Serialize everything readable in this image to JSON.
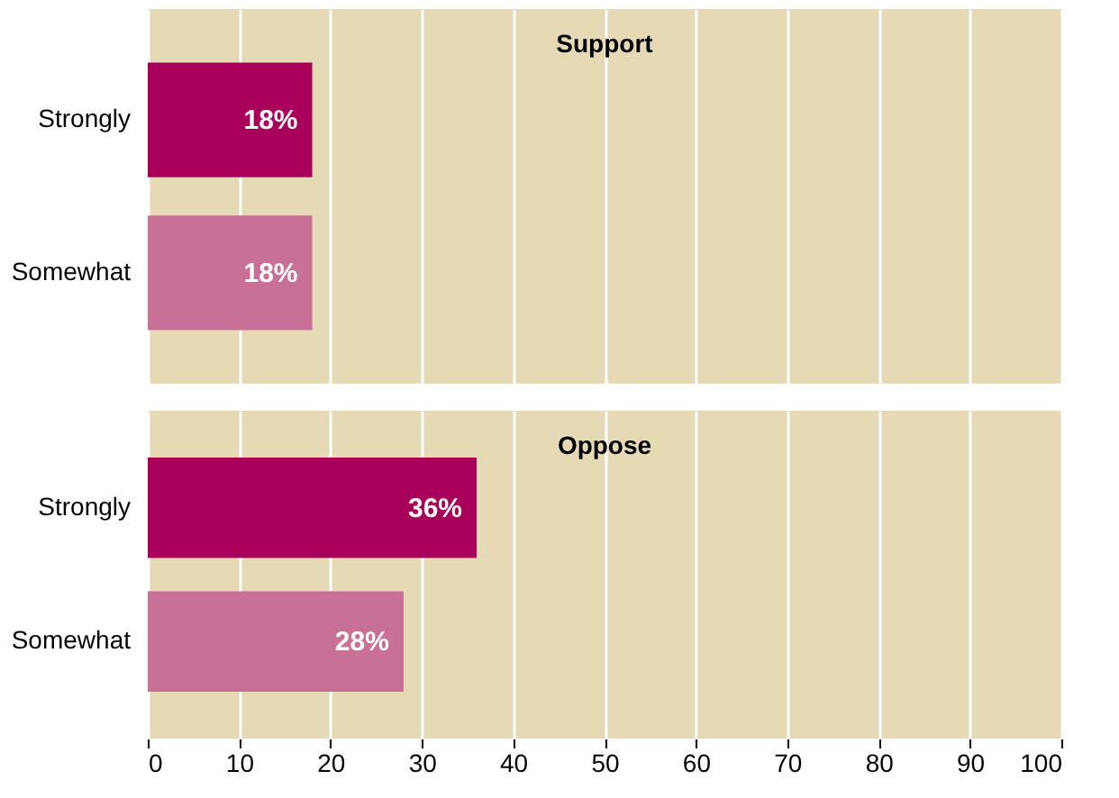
{
  "chart_data": [
    {
      "type": "bar",
      "orientation": "horizontal",
      "title": "Support",
      "categories": [
        "Strongly",
        "Somewhat"
      ],
      "values": [
        18,
        18
      ],
      "colors": [
        "#a8005a",
        "#c87095"
      ],
      "value_labels": [
        "18%",
        "18%"
      ],
      "xlim": [
        0,
        100
      ],
      "xticks": [
        0,
        10,
        20,
        30,
        40,
        50,
        60,
        70,
        80,
        90,
        100
      ],
      "grid": "x",
      "tick_labels": "y"
    },
    {
      "type": "bar",
      "orientation": "horizontal",
      "title": "Oppose",
      "categories": [
        "Strongly",
        "Somewhat"
      ],
      "values": [
        36,
        28
      ],
      "colors": [
        "#a8005a",
        "#c87095"
      ],
      "value_labels": [
        "36%",
        "28%"
      ],
      "xlim": [
        0,
        100
      ],
      "xticks": [
        0,
        10,
        20,
        30,
        40,
        50,
        60,
        70,
        80,
        90,
        100
      ],
      "grid": "x"
    }
  ]
}
